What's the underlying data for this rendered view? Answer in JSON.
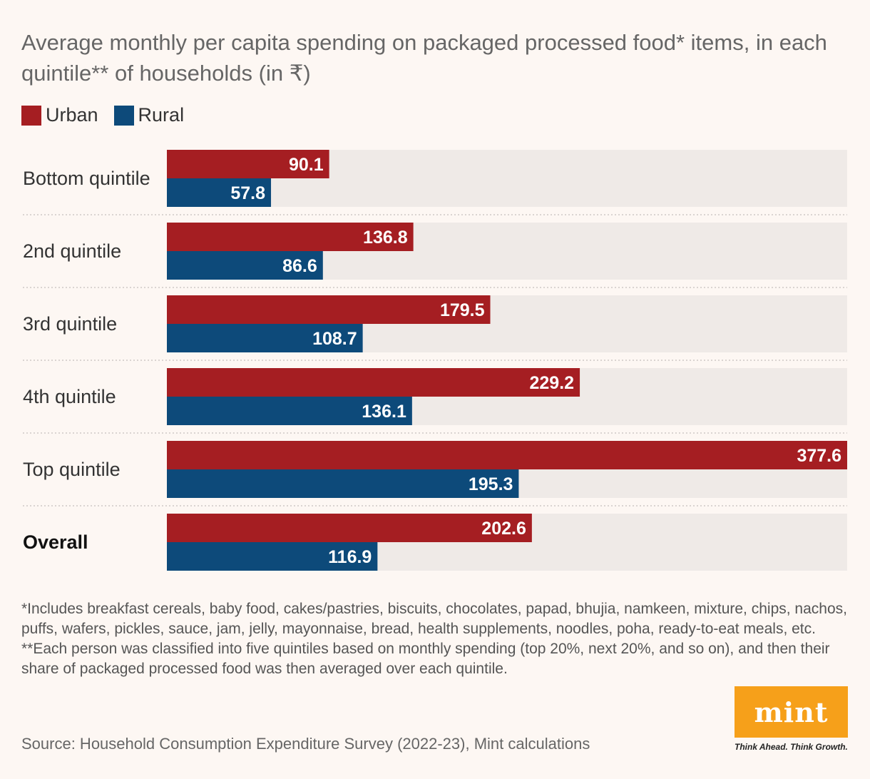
{
  "title": "Average monthly per capita spending on packaged processed food* items, in each quintile** of households (in ₹)",
  "legend": [
    {
      "label": "Urban",
      "color": "#a51e22"
    },
    {
      "label": "Rural",
      "color": "#0d4a7a"
    }
  ],
  "chart_data": {
    "type": "bar",
    "orientation": "horizontal",
    "title": "Average monthly per capita spending on packaged processed food* items, in each quintile** of households (in ₹)",
    "categories": [
      "Bottom quintile",
      "2nd quintile",
      "3rd quintile",
      "4th quintile",
      "Top quintile",
      "Overall"
    ],
    "series": [
      {
        "name": "Urban",
        "color": "#a51e22",
        "values": [
          90.1,
          136.8,
          179.5,
          229.2,
          377.6,
          202.6
        ]
      },
      {
        "name": "Rural",
        "color": "#0d4a7a",
        "values": [
          57.8,
          86.6,
          108.7,
          136.1,
          195.3,
          116.9
        ]
      }
    ],
    "xlim": [
      0,
      377.6
    ],
    "data_labels": true,
    "bold_categories": [
      "Overall"
    ],
    "grid": false,
    "legend_position": "top-left"
  },
  "footnote": "*Includes breakfast cereals, baby food, cakes/pastries, biscuits, chocolates, papad, bhujia, namkeen, mixture, chips, nachos, puffs, wafers, pickles, sauce, jam, jelly, mayonnaise, bread, health supplements, noodles, poha, ready-to-eat meals, etc. **Each person was classified into five quintiles based on monthly spending (top 20%, next 20%, and so on), and then their share of packaged processed food was then averaged over each quintile.",
  "source": "Source: Household Consumption Expenditure Survey (2022-23), Mint calculations",
  "logo": {
    "word": "mint",
    "tagline": "Think Ahead. Think Growth.",
    "color": "#f6a01a"
  }
}
